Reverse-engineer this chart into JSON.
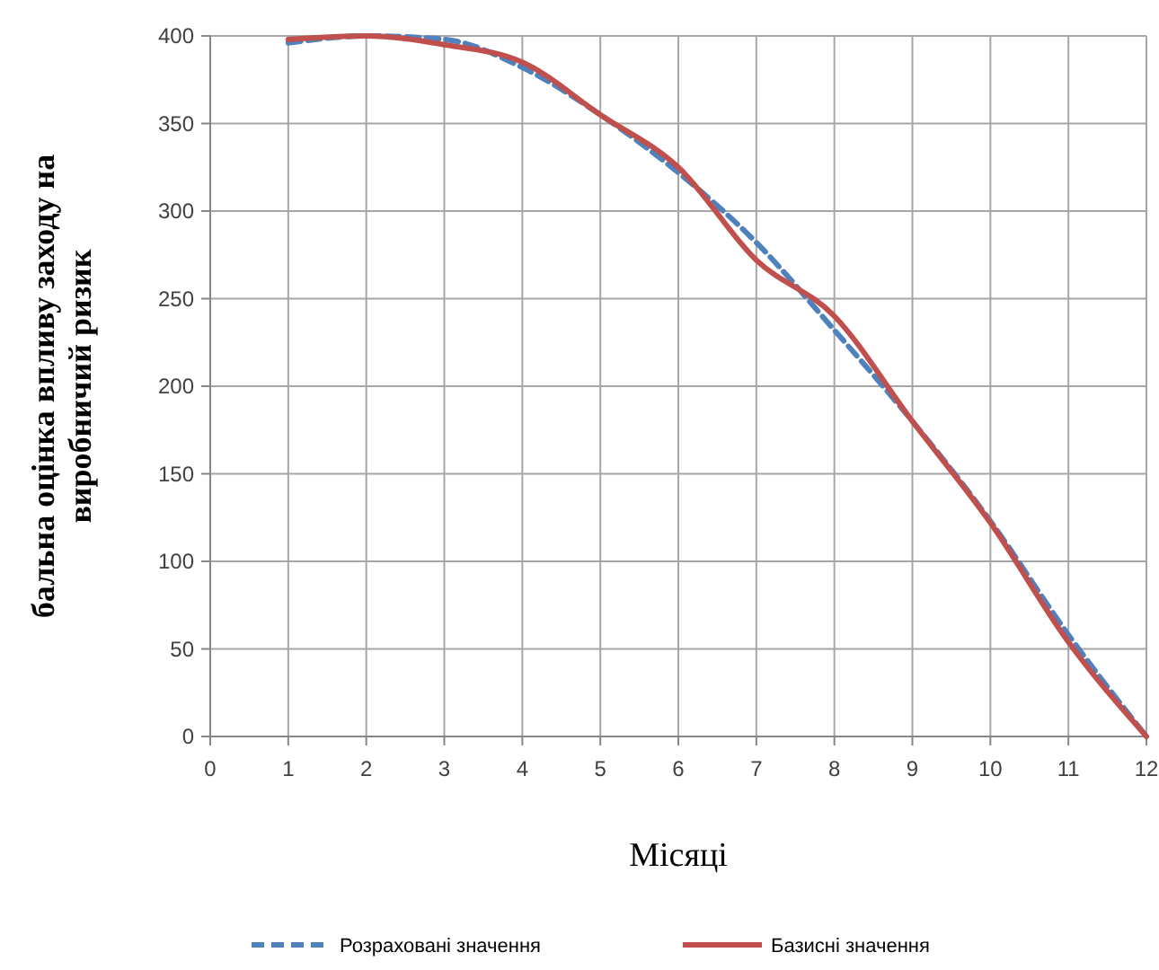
{
  "chart_data": {
    "type": "line",
    "xlabel": "Місяці",
    "ylabel": "бальна оцінка впливу заходу на виробничий  ризик",
    "x": [
      1,
      2,
      3,
      4,
      5,
      6,
      7,
      8,
      9,
      10,
      11,
      12
    ],
    "series": [
      {
        "name": "Розраховані значення",
        "color": "#4f81bd",
        "line_style": "dashed",
        "values": [
          396,
          400,
          398,
          382,
          355,
          322,
          282,
          232,
          180,
          123,
          58,
          0
        ]
      },
      {
        "name": "Базисні значення",
        "color": "#c0504d",
        "line_style": "solid",
        "values": [
          398,
          400,
          395,
          385,
          355,
          325,
          272,
          240,
          180,
          122,
          54,
          0
        ]
      }
    ],
    "xlim": [
      0,
      12
    ],
    "xticks": [
      0,
      1,
      2,
      3,
      4,
      5,
      6,
      7,
      8,
      9,
      10,
      11,
      12
    ],
    "ylim": [
      0,
      400
    ],
    "yticks": [
      0,
      50,
      100,
      150,
      200,
      250,
      300,
      350,
      400
    ],
    "grid": true,
    "legend": "bottom",
    "marker": "none"
  }
}
